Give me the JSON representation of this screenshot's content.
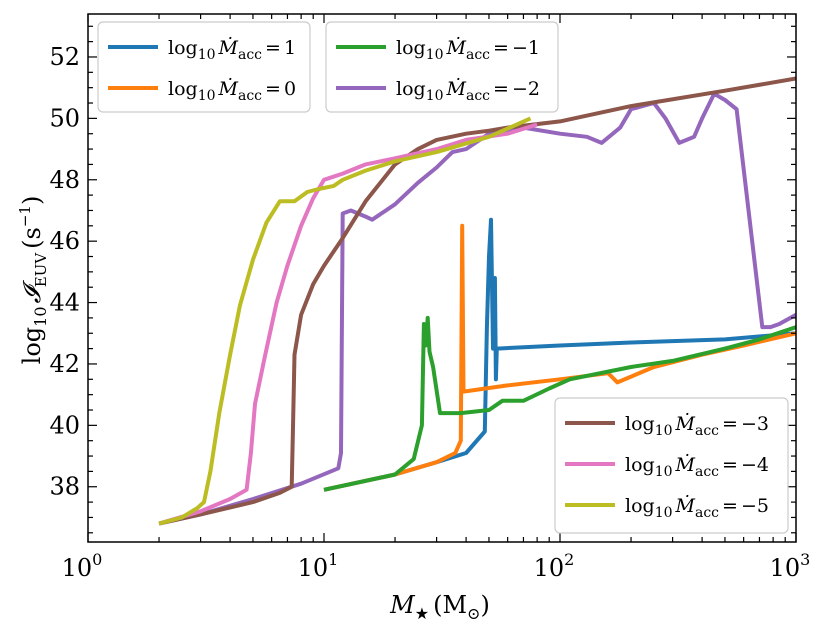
{
  "chart_data": {
    "type": "line",
    "title": "",
    "xlabel_main": "M",
    "xlabel_sub": "★",
    "xlabel_unit": "(M",
    "xlabel_unit_sub": "⊙",
    "xlabel_unit_close": ")",
    "ylabel_main": "log",
    "ylabel_sub": "10",
    "ylabel_sym": "𝓘",
    "ylabel_sym_sub": "EUV",
    "ylabel_unit": "(s",
    "ylabel_unit_sup": "−1",
    "ylabel_unit_close": ")",
    "x_scale": "log",
    "xlim": [
      1,
      1000
    ],
    "ylim": [
      36.2,
      53.4
    ],
    "x_ticks": [
      {
        "value": 1,
        "base": "10",
        "exp": "0"
      },
      {
        "value": 10,
        "base": "10",
        "exp": "1"
      },
      {
        "value": 100,
        "base": "10",
        "exp": "2"
      },
      {
        "value": 1000,
        "base": "10",
        "exp": "3"
      }
    ],
    "y_ticks": [
      38,
      40,
      42,
      44,
      46,
      48,
      50,
      52
    ],
    "legend_prefix": "log",
    "legend_prefix_sub": "10",
    "legend_sym": "Ṁ",
    "legend_sym_sub": "acc",
    "legend_eq": "=",
    "series": [
      {
        "name": "log10 Macc = 1",
        "value_label": "1",
        "color": "#1f77b4",
        "points": [
          [
            10,
            37.9
          ],
          [
            20,
            38.4
          ],
          [
            30,
            38.8
          ],
          [
            40,
            39.1
          ],
          [
            48,
            39.8
          ],
          [
            49,
            43.2
          ],
          [
            50,
            45.5
          ],
          [
            51,
            46.7
          ],
          [
            52,
            42.5
          ],
          [
            53,
            44.8
          ],
          [
            53.5,
            41.5
          ],
          [
            54,
            42.5
          ],
          [
            100,
            42.6
          ],
          [
            200,
            42.7
          ],
          [
            500,
            42.8
          ],
          [
            1000,
            43.0
          ]
        ]
      },
      {
        "name": "log10 Macc = 0",
        "value_label": "0",
        "color": "#ff7f0e",
        "points": [
          [
            10,
            37.9
          ],
          [
            20,
            38.4
          ],
          [
            30,
            38.8
          ],
          [
            36,
            39.1
          ],
          [
            38,
            39.5
          ],
          [
            38.5,
            46.5
          ],
          [
            39,
            41.1
          ],
          [
            60,
            41.3
          ],
          [
            100,
            41.5
          ],
          [
            160,
            41.7
          ],
          [
            175,
            41.4
          ],
          [
            250,
            41.9
          ],
          [
            400,
            42.3
          ],
          [
            600,
            42.6
          ],
          [
            1000,
            43.0
          ]
        ]
      },
      {
        "name": "log10 Macc = -1",
        "value_label": "−1",
        "color": "#2ca02c",
        "points": [
          [
            10,
            37.9
          ],
          [
            20,
            38.4
          ],
          [
            24,
            38.9
          ],
          [
            26,
            40.0
          ],
          [
            26.5,
            43.3
          ],
          [
            27,
            42.6
          ],
          [
            27.5,
            43.5
          ],
          [
            28,
            42.4
          ],
          [
            29,
            41.9
          ],
          [
            31,
            40.4
          ],
          [
            38,
            40.4
          ],
          [
            50,
            40.5
          ],
          [
            57,
            40.8
          ],
          [
            70,
            40.8
          ],
          [
            90,
            41.2
          ],
          [
            110,
            41.5
          ],
          [
            200,
            41.9
          ],
          [
            300,
            42.1
          ],
          [
            500,
            42.5
          ],
          [
            700,
            42.8
          ],
          [
            1000,
            43.2
          ]
        ]
      },
      {
        "name": "log10 Macc = -2",
        "value_label": "−2",
        "color": "#9467bd",
        "points": [
          [
            2,
            36.8
          ],
          [
            3,
            37.1
          ],
          [
            5,
            37.6
          ],
          [
            8,
            38.1
          ],
          [
            11.5,
            38.6
          ],
          [
            11.8,
            39.1
          ],
          [
            12,
            46.9
          ],
          [
            13,
            47.0
          ],
          [
            15,
            46.8
          ],
          [
            16,
            46.7
          ],
          [
            20,
            47.2
          ],
          [
            25,
            47.9
          ],
          [
            30,
            48.4
          ],
          [
            35,
            48.9
          ],
          [
            40,
            49.0
          ],
          [
            50,
            49.5
          ],
          [
            70,
            49.7
          ],
          [
            100,
            49.5
          ],
          [
            130,
            49.4
          ],
          [
            150,
            49.2
          ],
          [
            180,
            49.7
          ],
          [
            200,
            50.3
          ],
          [
            250,
            50.5
          ],
          [
            280,
            50.0
          ],
          [
            320,
            49.2
          ],
          [
            370,
            49.4
          ],
          [
            400,
            50.0
          ],
          [
            450,
            50.8
          ],
          [
            500,
            50.6
          ],
          [
            560,
            50.3
          ],
          [
            720,
            43.2
          ],
          [
            780,
            43.2
          ],
          [
            850,
            43.3
          ],
          [
            1000,
            43.6
          ]
        ]
      },
      {
        "name": "log10 Macc = -3",
        "value_label": "−3",
        "color": "#8c564b",
        "points": [
          [
            2,
            36.8
          ],
          [
            3,
            37.1
          ],
          [
            5,
            37.5
          ],
          [
            6.5,
            37.8
          ],
          [
            7.3,
            38.0
          ],
          [
            7.4,
            40.1
          ],
          [
            7.5,
            42.3
          ],
          [
            8,
            43.6
          ],
          [
            9,
            44.6
          ],
          [
            10,
            45.2
          ],
          [
            12,
            46.1
          ],
          [
            15,
            47.3
          ],
          [
            20,
            48.5
          ],
          [
            25,
            49.0
          ],
          [
            30,
            49.3
          ],
          [
            40,
            49.5
          ],
          [
            50,
            49.6
          ],
          [
            60,
            49.7
          ],
          [
            100,
            49.9
          ],
          [
            200,
            50.4
          ],
          [
            500,
            50.9
          ],
          [
            1000,
            51.3
          ]
        ]
      },
      {
        "name": "log10 Macc = -4",
        "value_label": "−4",
        "color": "#e377c2",
        "points": [
          [
            2,
            36.8
          ],
          [
            3,
            37.2
          ],
          [
            4,
            37.6
          ],
          [
            4.7,
            37.9
          ],
          [
            4.9,
            39.1
          ],
          [
            5.1,
            40.7
          ],
          [
            5.6,
            42.2
          ],
          [
            6.3,
            44.0
          ],
          [
            7,
            45.2
          ],
          [
            8,
            46.5
          ],
          [
            9,
            47.4
          ],
          [
            10,
            48.0
          ],
          [
            12,
            48.2
          ],
          [
            15,
            48.5
          ],
          [
            20,
            48.7
          ],
          [
            30,
            49.0
          ],
          [
            40,
            49.3
          ],
          [
            60,
            49.5
          ],
          [
            80,
            49.8
          ]
        ]
      },
      {
        "name": "log10 Macc = -5",
        "value_label": "−5",
        "color": "#bcbd22",
        "points": [
          [
            2,
            36.8
          ],
          [
            2.5,
            37.0
          ],
          [
            2.9,
            37.3
          ],
          [
            3.1,
            37.5
          ],
          [
            3.3,
            38.5
          ],
          [
            3.6,
            40.4
          ],
          [
            4,
            42.3
          ],
          [
            4.4,
            43.9
          ],
          [
            5,
            45.4
          ],
          [
            5.7,
            46.6
          ],
          [
            6.5,
            47.3
          ],
          [
            7.5,
            47.3
          ],
          [
            8.5,
            47.6
          ],
          [
            9.5,
            47.7
          ],
          [
            11,
            47.8
          ],
          [
            12,
            48.0
          ],
          [
            15,
            48.3
          ],
          [
            20,
            48.6
          ],
          [
            30,
            48.9
          ],
          [
            50,
            49.4
          ],
          [
            75,
            50.0
          ]
        ]
      }
    ],
    "legends": [
      {
        "position": "top-left",
        "series": [
          0,
          1
        ]
      },
      {
        "position": "top-center",
        "series": [
          2,
          3
        ]
      },
      {
        "position": "bottom-right",
        "series": [
          4,
          5,
          6
        ]
      }
    ]
  }
}
